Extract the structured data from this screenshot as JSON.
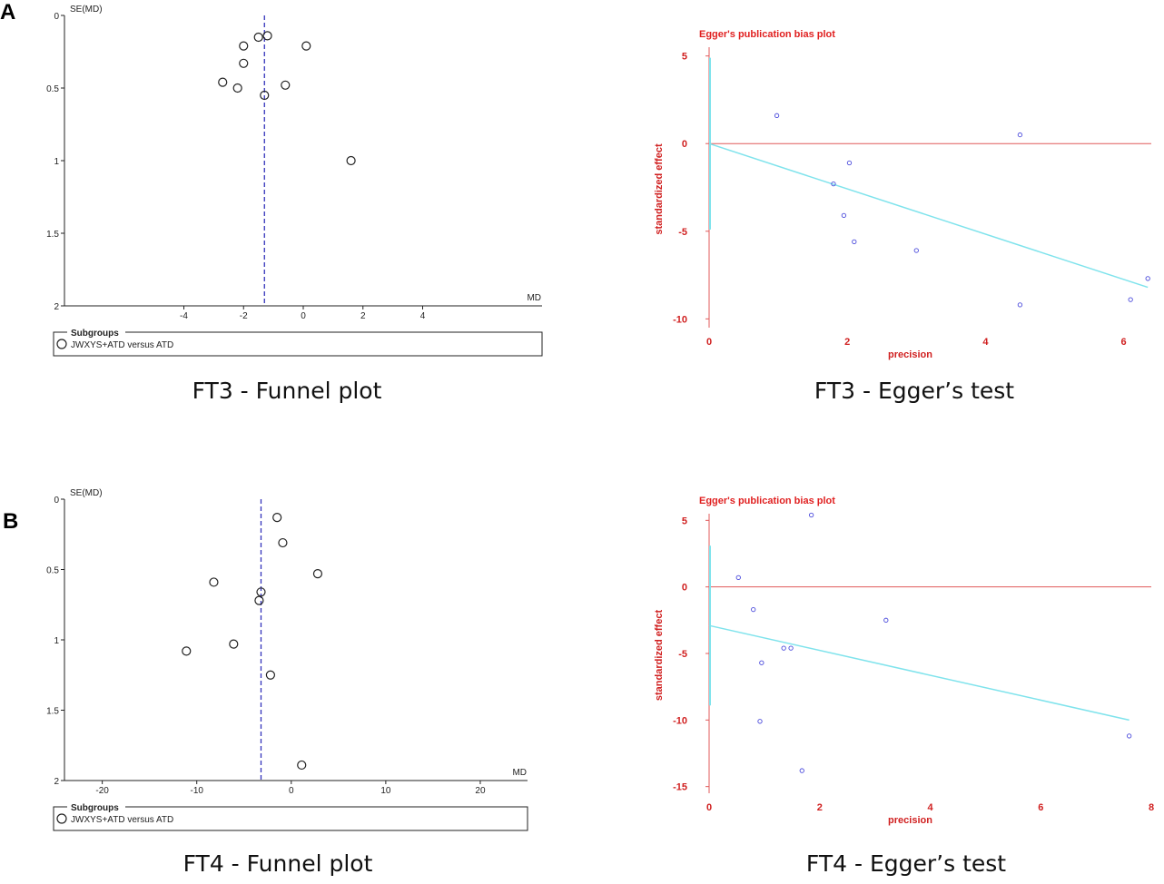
{
  "panels": [
    {
      "letter": "A",
      "funnel_caption": "FT3 - Funnel plot",
      "egger_caption": "FT3 - Egger’s test"
    },
    {
      "letter": "B",
      "funnel_caption": "FT4 - Funnel plot",
      "egger_caption": "FT4 - Egger’s test"
    }
  ],
  "chart_data": [
    {
      "type": "scatter",
      "id": "ft3-funnel",
      "title": "",
      "ylabel": "SE(MD)",
      "xlabel": "MD",
      "xlim": [
        -8,
        8
      ],
      "ylim": [
        0,
        2
      ],
      "y_reversed": true,
      "xticks": [
        -4,
        -2,
        0,
        2,
        4
      ],
      "yticks": [
        0,
        0.5,
        1,
        1.5,
        2
      ],
      "reference_line_x": -1.3,
      "reference_line_color": "#3333bb",
      "legend": {
        "title": "Subgroups",
        "entry": "JWXYS+ATD versus ATD",
        "placement": "bottom"
      },
      "points": [
        {
          "x": -1.5,
          "y": 0.15
        },
        {
          "x": -1.2,
          "y": 0.14
        },
        {
          "x": -2.0,
          "y": 0.21
        },
        {
          "x": 0.1,
          "y": 0.21
        },
        {
          "x": -2.0,
          "y": 0.33
        },
        {
          "x": -2.7,
          "y": 0.46
        },
        {
          "x": -2.2,
          "y": 0.5
        },
        {
          "x": -0.6,
          "y": 0.48
        },
        {
          "x": -1.3,
          "y": 0.55
        },
        {
          "x": 1.6,
          "y": 1.0
        }
      ]
    },
    {
      "type": "scatter",
      "id": "ft3-egger",
      "title": "Egger's publication bias plot",
      "xlabel": "precision",
      "ylabel": "standardized effect",
      "xlim": [
        0,
        6.4
      ],
      "ylim": [
        -10.5,
        5.5
      ],
      "xticks": [
        0,
        2,
        4,
        6
      ],
      "yticks": [
        5,
        0,
        -5,
        -10
      ],
      "axis_color": "#e05a5a",
      "fit_color": "#7fe3ec",
      "regression": {
        "x1": 0,
        "y1": 0.0,
        "x2": 6.35,
        "y2": -8.2
      },
      "intercept_ci": [
        -4.9,
        4.9
      ],
      "points": [
        {
          "x": 0.98,
          "y": 1.6
        },
        {
          "x": 4.5,
          "y": 0.5
        },
        {
          "x": 2.03,
          "y": -1.1
        },
        {
          "x": 1.8,
          "y": -2.3
        },
        {
          "x": 1.95,
          "y": -4.1
        },
        {
          "x": 2.1,
          "y": -5.6
        },
        {
          "x": 3.0,
          "y": -6.1
        },
        {
          "x": 4.5,
          "y": -9.2
        },
        {
          "x": 6.1,
          "y": -8.9
        },
        {
          "x": 6.35,
          "y": -7.7
        }
      ]
    },
    {
      "type": "scatter",
      "id": "ft4-funnel",
      "title": "",
      "ylabel": "SE(MD)",
      "xlabel": "MD",
      "xlim": [
        -24,
        25
      ],
      "ylim": [
        0,
        2
      ],
      "y_reversed": true,
      "xticks": [
        -20,
        -10,
        0,
        10,
        20
      ],
      "yticks": [
        0,
        0.5,
        1,
        1.5,
        2
      ],
      "reference_line_x": -3.2,
      "reference_line_color": "#3333bb",
      "legend": {
        "title": "Subgroups",
        "entry": "JWXYS+ATD versus ATD",
        "placement": "bottom"
      },
      "points": [
        {
          "x": -1.5,
          "y": 0.13
        },
        {
          "x": -0.9,
          "y": 0.31
        },
        {
          "x": 2.8,
          "y": 0.53
        },
        {
          "x": -8.2,
          "y": 0.59
        },
        {
          "x": -3.2,
          "y": 0.66
        },
        {
          "x": -3.4,
          "y": 0.72
        },
        {
          "x": -6.1,
          "y": 1.03
        },
        {
          "x": -11.1,
          "y": 1.08
        },
        {
          "x": -2.2,
          "y": 1.25
        },
        {
          "x": 1.1,
          "y": 1.89
        }
      ]
    },
    {
      "type": "scatter",
      "id": "ft4-egger",
      "title": "Egger's publication bias plot",
      "xlabel": "precision",
      "ylabel": "standardized effect",
      "xlim": [
        0,
        8
      ],
      "ylim": [
        -15.5,
        5.5
      ],
      "xticks": [
        0,
        2,
        4,
        6,
        8
      ],
      "yticks": [
        5,
        0,
        -5,
        -10,
        -15
      ],
      "axis_color": "#e05a5a",
      "fit_color": "#7fe3ec",
      "regression": {
        "x1": 0,
        "y1": -2.9,
        "x2": 7.6,
        "y2": -10.0
      },
      "intercept_ci": [
        -8.9,
        3.1
      ],
      "points": [
        {
          "x": 1.85,
          "y": 5.4
        },
        {
          "x": 0.53,
          "y": 0.7
        },
        {
          "x": 0.8,
          "y": -1.7
        },
        {
          "x": 3.2,
          "y": -2.5
        },
        {
          "x": 1.35,
          "y": -4.6
        },
        {
          "x": 1.48,
          "y": -4.6
        },
        {
          "x": 0.95,
          "y": -5.7
        },
        {
          "x": 0.92,
          "y": -10.1
        },
        {
          "x": 1.68,
          "y": -13.8
        },
        {
          "x": 7.6,
          "y": -11.2
        }
      ]
    }
  ]
}
